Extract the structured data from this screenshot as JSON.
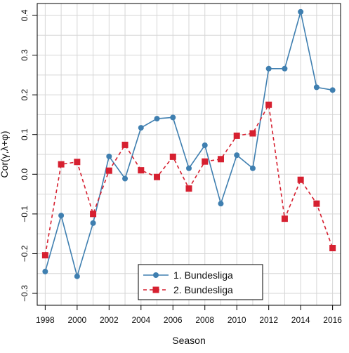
{
  "chart_data": {
    "type": "line",
    "xlabel": "Season",
    "ylabel": "Cor(γ,λ+φ)",
    "xlim": [
      1997.5,
      2016.5
    ],
    "ylim": [
      -0.33,
      0.43
    ],
    "x_ticks": [
      1998,
      2000,
      2002,
      2004,
      2006,
      2008,
      2010,
      2012,
      2014,
      2016
    ],
    "x_tick_labels": [
      "1998",
      "2000",
      "2002",
      "2004",
      "2006",
      "2008",
      "2010",
      "2012",
      "2014",
      "2016"
    ],
    "y_ticks": [
      -0.3,
      -0.2,
      -0.1,
      0.0,
      0.1,
      0.2,
      0.3,
      0.4
    ],
    "y_tick_labels": [
      "−0.3",
      "−0.2",
      "−0.1",
      "0.0",
      "0.1",
      "0.2",
      "0.3",
      "0.4"
    ],
    "grid": true,
    "legend_position": "bottom-center",
    "x": [
      1998,
      1999,
      2000,
      2001,
      2002,
      2003,
      2004,
      2005,
      2006,
      2007,
      2008,
      2009,
      2010,
      2011,
      2012,
      2013,
      2014,
      2015,
      2016
    ],
    "series": [
      {
        "name": "1. Bundesliga",
        "color": "#3f7fb0",
        "line_style": "solid",
        "marker": "circle",
        "values": [
          -0.245,
          -0.104,
          -0.257,
          -0.123,
          0.045,
          -0.011,
          0.117,
          0.14,
          0.143,
          0.015,
          0.073,
          -0.074,
          0.048,
          0.015,
          0.266,
          0.266,
          0.409,
          0.219,
          0.212
        ]
      },
      {
        "name": "2. Bundesliga",
        "color": "#d62030",
        "line_style": "dashed",
        "marker": "square",
        "values": [
          -0.204,
          0.025,
          0.031,
          -0.1,
          0.009,
          0.074,
          0.01,
          -0.007,
          0.044,
          -0.036,
          0.032,
          0.038,
          0.097,
          0.103,
          0.175,
          -0.112,
          -0.014,
          -0.074,
          -0.186
        ]
      }
    ]
  }
}
